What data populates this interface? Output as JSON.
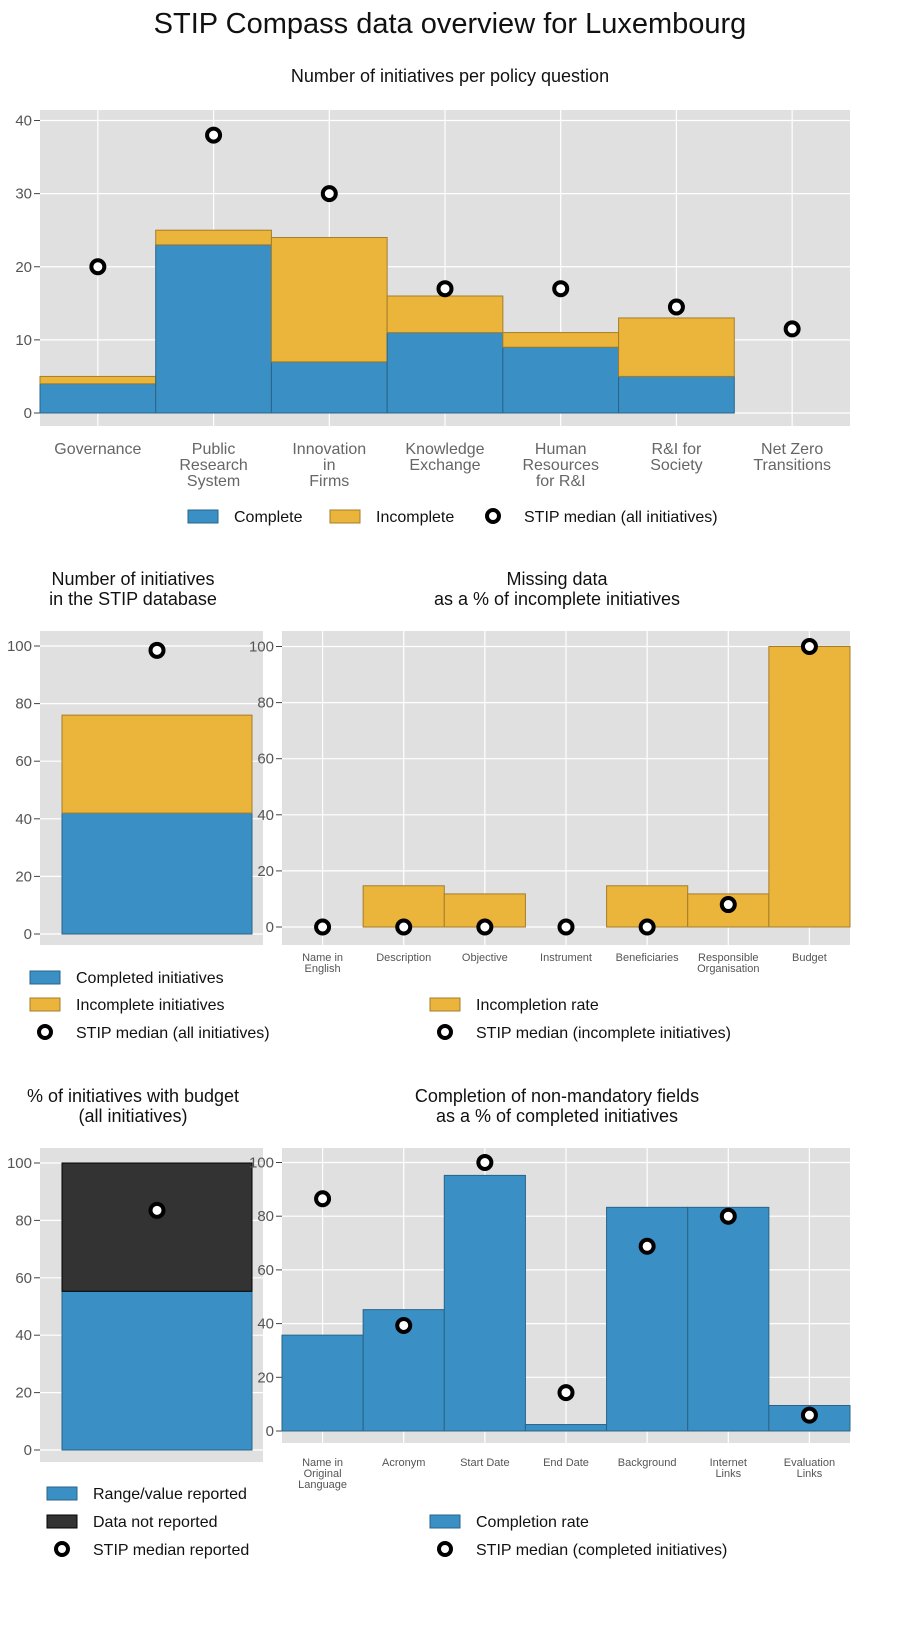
{
  "page": {
    "title": "STIP Compass data overview for Luxembourg"
  },
  "colors": {
    "complete": "#3a8fc4",
    "incomplete": "#ebb43a",
    "not_reported": "#333333",
    "panel": "#e0e0e0",
    "median": "#000000"
  },
  "chart_data": [
    {
      "id": "policy",
      "type": "bar",
      "title": "Number of initiatives per policy question",
      "categories": [
        [
          "Governance"
        ],
        [
          "Public",
          "Research",
          "System"
        ],
        [
          "Innovation",
          "in",
          "Firms"
        ],
        [
          "Knowledge",
          "Exchange"
        ],
        [
          "Human",
          "Resources",
          "for R&I"
        ],
        [
          "R&I for",
          "Society"
        ],
        [
          "Net Zero",
          "Transitions"
        ]
      ],
      "series": [
        {
          "name": "Complete",
          "values": [
            4,
            23,
            7,
            11,
            9,
            5,
            0
          ]
        },
        {
          "name": "Incomplete",
          "values": [
            1,
            2,
            17,
            5,
            2,
            8,
            0
          ]
        }
      ],
      "median": {
        "name": "STIP median (all initiatives)",
        "values": [
          20,
          38,
          30,
          17,
          17,
          14.5,
          11.5
        ]
      },
      "ylim": [
        0,
        41
      ],
      "yticks": [
        0,
        10,
        20,
        30,
        40
      ],
      "stacked": true,
      "grid": true,
      "legend": "bottom"
    },
    {
      "id": "total",
      "type": "bar",
      "title": "Number of initiatives\nin the STIP database",
      "categories": [
        ""
      ],
      "series": [
        {
          "name": "Completed initiatives",
          "values": [
            42
          ]
        },
        {
          "name": "Incomplete initiatives",
          "values": [
            34
          ]
        }
      ],
      "median": {
        "name": "STIP median (all initiatives)",
        "values": [
          98.5
        ]
      },
      "ylim": [
        0,
        103
      ],
      "yticks": [
        0,
        20,
        40,
        60,
        80,
        100
      ],
      "stacked": true,
      "grid": true,
      "legend": "bottom"
    },
    {
      "id": "missing",
      "type": "bar",
      "title": "Missing data\nas a % of incomplete initiatives",
      "categories": [
        [
          "Name in",
          "English"
        ],
        [
          "Description"
        ],
        [
          "Objective"
        ],
        [
          "Instrument"
        ],
        [
          "Beneficiaries"
        ],
        [
          "Responsible",
          "Organisation"
        ],
        [
          "Budget"
        ]
      ],
      "series": [
        {
          "name": "Incompletion rate",
          "values": [
            0,
            14.7,
            11.8,
            0,
            14.7,
            11.8,
            100
          ]
        }
      ],
      "median": {
        "name": "STIP median (incomplete initiatives)",
        "values": [
          0,
          0,
          0,
          0,
          0,
          8,
          100
        ]
      },
      "ylim": [
        0,
        103
      ],
      "yticks": [
        0,
        20,
        40,
        60,
        80,
        100
      ],
      "grid": true,
      "legend": "bottom"
    },
    {
      "id": "budget",
      "type": "bar",
      "title": "% of initiatives with budget\n(all initiatives)",
      "categories": [
        ""
      ],
      "series": [
        {
          "name": "Range/value reported",
          "values": [
            55.3
          ]
        },
        {
          "name": "Data not reported",
          "values": [
            44.7
          ]
        }
      ],
      "median": {
        "name": "STIP median reported",
        "values": [
          83.5
        ]
      },
      "ylim": [
        0,
        103
      ],
      "yticks": [
        0,
        20,
        40,
        60,
        80,
        100
      ],
      "stacked": true,
      "grid": true,
      "legend": "bottom"
    },
    {
      "id": "completion",
      "type": "bar",
      "title": "Completion of non-mandatory fields\nas a % of completed initiatives",
      "categories": [
        [
          "Name in",
          "Original",
          "Language"
        ],
        [
          "Acronym"
        ],
        [
          "Start Date"
        ],
        [
          "End Date"
        ],
        [
          "Background"
        ],
        [
          "Internet",
          "Links"
        ],
        [
          "Evaluation",
          "Links"
        ]
      ],
      "series": [
        {
          "name": "Completion rate",
          "values": [
            35.7,
            45.2,
            95.2,
            2.4,
            83.3,
            83.3,
            9.5
          ]
        }
      ],
      "median": {
        "name": "STIP median (completed initiatives)",
        "values": [
          86.5,
          39.3,
          100,
          14.3,
          68.8,
          80,
          5.9
        ]
      },
      "ylim": [
        0,
        103
      ],
      "yticks": [
        0,
        20,
        40,
        60,
        80,
        100
      ],
      "grid": true,
      "legend": "bottom"
    }
  ]
}
